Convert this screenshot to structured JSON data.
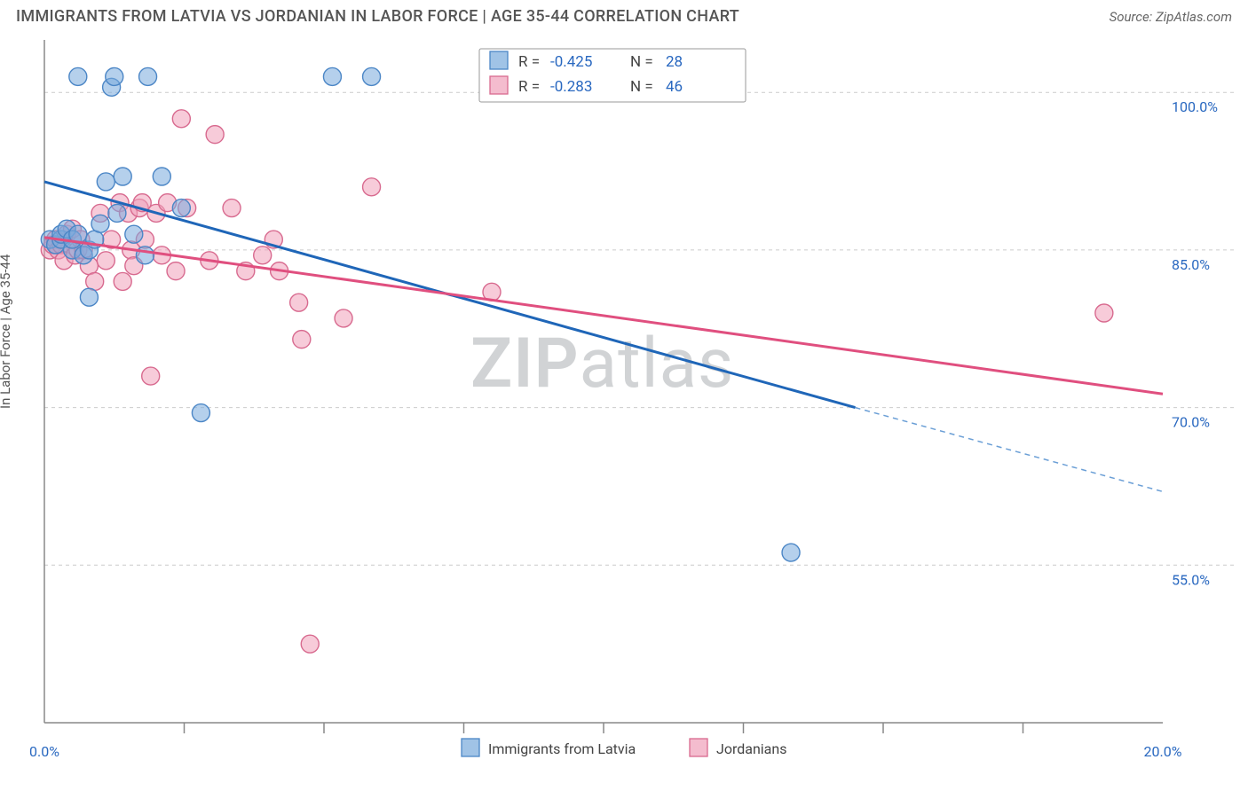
{
  "header": {
    "title": "IMMIGRANTS FROM LATVIA VS JORDANIAN IN LABOR FORCE | AGE 35-44 CORRELATION CHART",
    "source": "Source: ZipAtlas.com"
  },
  "chart": {
    "type": "scatter",
    "ylabel": "In Labor Force | Age 35-44",
    "xlim": [
      0,
      20
    ],
    "ylim": [
      40,
      105
    ],
    "ytick_labels": [
      "55.0%",
      "70.0%",
      "85.0%",
      "100.0%"
    ],
    "ytick_values": [
      55,
      70,
      85,
      100
    ],
    "xtick_labels": [
      "0.0%",
      "20.0%"
    ],
    "xtick_values": [
      0,
      20
    ],
    "xtick_minor": [
      2.5,
      5.0,
      7.5,
      10.0,
      12.5,
      15.0,
      17.5
    ],
    "grid_color": "#cccccc",
    "axis_color": "#888888",
    "background_color": "#ffffff",
    "marker_radius": 10,
    "watermark": {
      "bold": "ZIP",
      "light": "atlas"
    },
    "legend_top": {
      "series": [
        {
          "swatch": "blue",
          "r_label": "R =",
          "r_value": "-0.425",
          "n_label": "N =",
          "n_value": "28"
        },
        {
          "swatch": "pink",
          "r_label": "R =",
          "r_value": "-0.283",
          "n_label": "N =",
          "n_value": "46"
        }
      ]
    },
    "legend_bottom": {
      "items": [
        {
          "swatch": "blue",
          "label": "Immigrants from Latvia"
        },
        {
          "swatch": "pink",
          "label": "Jordanians"
        }
      ]
    },
    "series_blue": {
      "color_fill": "rgba(120,170,220,0.55)",
      "color_stroke": "#4b86c6",
      "trend_color": "#1f66b8",
      "trend": {
        "x1": 0,
        "y1": 91.5,
        "x2": 14.5,
        "y2": 70.0,
        "x2_ext": 20,
        "y2_ext": 62.0
      },
      "points": [
        [
          0.1,
          86
        ],
        [
          0.2,
          85.5
        ],
        [
          0.3,
          86
        ],
        [
          0.3,
          86.5
        ],
        [
          0.4,
          87
        ],
        [
          0.5,
          85
        ],
        [
          0.5,
          86
        ],
        [
          0.6,
          86.5
        ],
        [
          0.6,
          101.5
        ],
        [
          0.7,
          84.5
        ],
        [
          0.8,
          85
        ],
        [
          0.8,
          80.5
        ],
        [
          0.9,
          86
        ],
        [
          1.0,
          87.5
        ],
        [
          1.1,
          91.5
        ],
        [
          1.2,
          100.5
        ],
        [
          1.25,
          101.5
        ],
        [
          1.3,
          88.5
        ],
        [
          1.4,
          92
        ],
        [
          1.6,
          86.5
        ],
        [
          1.85,
          101.5
        ],
        [
          1.8,
          84.5
        ],
        [
          2.1,
          92
        ],
        [
          2.45,
          89
        ],
        [
          2.8,
          69.5
        ],
        [
          5.15,
          101.5
        ],
        [
          5.85,
          101.5
        ],
        [
          13.35,
          56.2
        ]
      ]
    },
    "series_pink": {
      "color_fill": "rgba(240,160,185,0.55)",
      "color_stroke": "#d86a8f",
      "trend_color": "#e04f7f",
      "trend": {
        "x1": 0,
        "y1": 86.2,
        "x2": 20,
        "y2": 71.3
      },
      "points": [
        [
          0.1,
          85
        ],
        [
          0.15,
          85.5
        ],
        [
          0.2,
          86
        ],
        [
          0.25,
          85
        ],
        [
          0.3,
          85.5
        ],
        [
          0.35,
          84
        ],
        [
          0.4,
          86.5
        ],
        [
          0.5,
          87
        ],
        [
          0.55,
          84.5
        ],
        [
          0.6,
          85
        ],
        [
          0.65,
          86
        ],
        [
          0.7,
          85
        ],
        [
          0.8,
          83.5
        ],
        [
          0.9,
          82
        ],
        [
          1.0,
          88.5
        ],
        [
          1.1,
          84
        ],
        [
          1.2,
          86
        ],
        [
          1.35,
          89.5
        ],
        [
          1.4,
          82
        ],
        [
          1.5,
          88.5
        ],
        [
          1.55,
          85
        ],
        [
          1.6,
          83.5
        ],
        [
          1.7,
          89
        ],
        [
          1.75,
          89.5
        ],
        [
          1.8,
          86
        ],
        [
          1.9,
          73
        ],
        [
          2.0,
          88.5
        ],
        [
          2.1,
          84.5
        ],
        [
          2.2,
          89.5
        ],
        [
          2.35,
          83
        ],
        [
          2.45,
          97.5
        ],
        [
          2.55,
          89
        ],
        [
          2.95,
          84
        ],
        [
          3.05,
          96
        ],
        [
          3.35,
          89
        ],
        [
          3.6,
          83
        ],
        [
          3.9,
          84.5
        ],
        [
          4.1,
          86
        ],
        [
          4.2,
          83
        ],
        [
          4.55,
          80
        ],
        [
          4.6,
          76.5
        ],
        [
          4.75,
          47.5
        ],
        [
          5.35,
          78.5
        ],
        [
          5.85,
          91
        ],
        [
          8.0,
          81
        ],
        [
          18.95,
          79
        ]
      ]
    }
  }
}
